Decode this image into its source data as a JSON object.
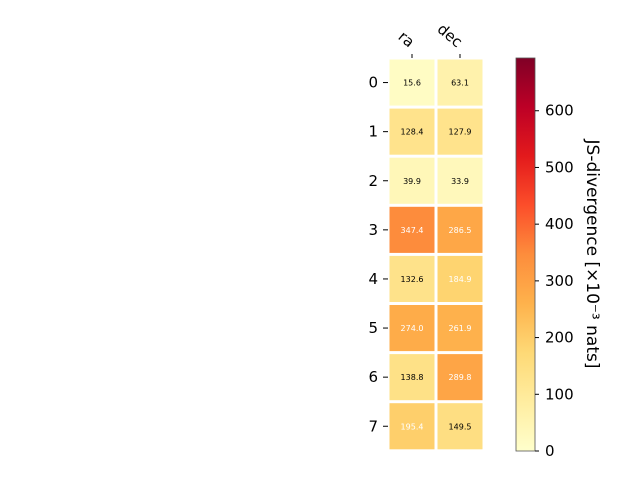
{
  "chart_data": {
    "type": "heatmap",
    "columns": [
      "ra",
      "dec"
    ],
    "rows": [
      "0",
      "1",
      "2",
      "3",
      "4",
      "5",
      "6",
      "7"
    ],
    "values": [
      [
        15.6,
        63.1
      ],
      [
        128.4,
        127.9
      ],
      [
        39.9,
        33.9
      ],
      [
        347.4,
        286.5
      ],
      [
        132.6,
        184.9
      ],
      [
        274.0,
        261.9
      ],
      [
        138.8,
        289.8
      ],
      [
        195.4,
        149.5
      ]
    ],
    "value_labels": [
      [
        "15.6",
        "63.1"
      ],
      [
        "128.4",
        "127.9"
      ],
      [
        "39.9",
        "33.9"
      ],
      [
        "347.4",
        "286.5"
      ],
      [
        "132.6",
        "184.9"
      ],
      [
        "274.0",
        "261.9"
      ],
      [
        "138.8",
        "289.8"
      ],
      [
        "195.4",
        "149.5"
      ]
    ],
    "colormap": "YlOrRd",
    "colorbar": {
      "label": "JS-divergence [×10⁻³ nats]",
      "range": [
        0,
        693
      ],
      "ticks": [
        0,
        100,
        200,
        300,
        400,
        500,
        600
      ]
    }
  }
}
